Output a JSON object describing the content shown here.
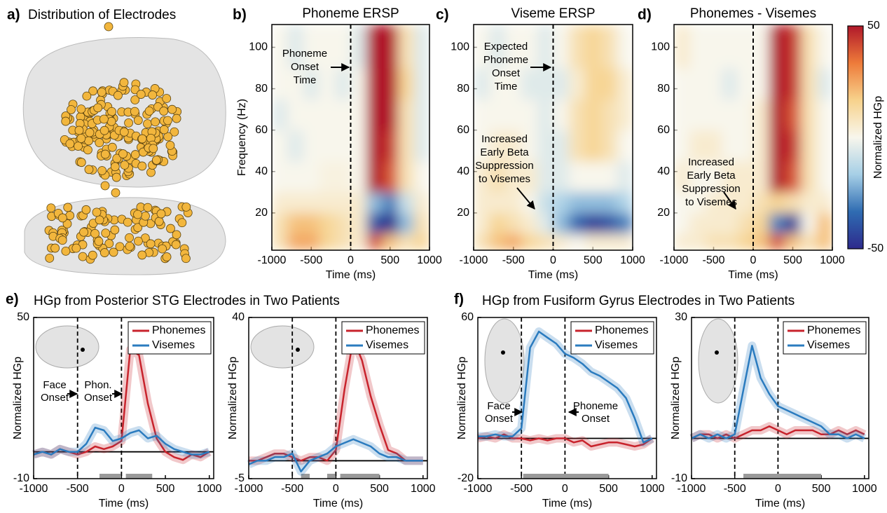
{
  "chart_data": [
    {
      "type": "image",
      "label": "a)",
      "title": "Distribution of Electrodes"
    },
    {
      "type": "heatmap",
      "label": "b)",
      "title": "Phoneme ERSP",
      "xlabel": "Time (ms)",
      "ylabel": "Frequency (Hz)",
      "xlim": [
        -1000,
        1000
      ],
      "ylim": [
        2,
        111
      ],
      "xticks": [
        -1000,
        -500,
        0,
        500,
        1000
      ],
      "yticks": [
        20,
        40,
        60,
        80,
        100
      ],
      "x_edges": [
        -1000,
        -800,
        -600,
        -400,
        -200,
        0,
        200,
        400,
        600,
        800,
        1000
      ],
      "y_edges": [
        2,
        10,
        20,
        30,
        45,
        60,
        75,
        90,
        111
      ],
      "clim": [
        -50,
        50
      ],
      "event_lines": [
        0
      ],
      "z": [
        [
          10,
          25,
          25,
          15,
          10,
          5,
          40,
          20,
          10,
          15
        ],
        [
          10,
          20,
          20,
          15,
          10,
          5,
          -40,
          -50,
          -20,
          10
        ],
        [
          5,
          5,
          5,
          5,
          5,
          5,
          -20,
          -30,
          -10,
          5
        ],
        [
          0,
          0,
          0,
          2,
          2,
          0,
          50,
          40,
          10,
          0
        ],
        [
          0,
          -5,
          0,
          0,
          0,
          0,
          50,
          45,
          10,
          -5
        ],
        [
          -5,
          0,
          0,
          0,
          0,
          0,
          50,
          50,
          10,
          -5
        ],
        [
          0,
          0,
          -5,
          0,
          -5,
          0,
          50,
          50,
          15,
          -5
        ],
        [
          0,
          -5,
          0,
          0,
          0,
          -5,
          50,
          50,
          10,
          -5
        ]
      ],
      "annotations": [
        [
          "Phoneme",
          "Onset",
          "Time"
        ]
      ]
    },
    {
      "type": "heatmap",
      "label": "c)",
      "title": "Viseme ERSP",
      "xlabel": "Time (ms)",
      "xlim": [
        -1000,
        1000
      ],
      "ylim": [
        2,
        111
      ],
      "xticks": [
        -1000,
        -500,
        0,
        500,
        1000
      ],
      "yticks": [
        20,
        40,
        60,
        80,
        100
      ],
      "x_edges": [
        -1000,
        -800,
        -600,
        -400,
        -200,
        0,
        200,
        400,
        600,
        800,
        1000
      ],
      "y_edges": [
        2,
        10,
        20,
        30,
        45,
        60,
        75,
        90,
        111
      ],
      "clim": [
        -50,
        50
      ],
      "event_lines": [
        0
      ],
      "z": [
        [
          10,
          20,
          25,
          15,
          10,
          5,
          0,
          5,
          5,
          5
        ],
        [
          5,
          15,
          10,
          5,
          -5,
          -20,
          -35,
          -45,
          -40,
          -30
        ],
        [
          5,
          5,
          5,
          0,
          -10,
          -15,
          -20,
          -20,
          -20,
          -15
        ],
        [
          5,
          10,
          5,
          5,
          -5,
          -5,
          0,
          0,
          0,
          -5
        ],
        [
          0,
          5,
          5,
          0,
          -5,
          -5,
          10,
          15,
          10,
          0
        ],
        [
          0,
          0,
          0,
          0,
          -5,
          0,
          10,
          15,
          10,
          5
        ],
        [
          -5,
          0,
          0,
          -5,
          -5,
          -5,
          5,
          15,
          15,
          5
        ],
        [
          0,
          -5,
          0,
          0,
          -5,
          0,
          10,
          15,
          10,
          0
        ]
      ],
      "annotations": [
        [
          "Expected",
          "Phoneme",
          "Onset",
          "Time"
        ],
        [
          "Increased",
          "Early Beta",
          "Suppression",
          "to Visemes"
        ]
      ]
    },
    {
      "type": "heatmap",
      "label": "d)",
      "title": "Phonemes - Visemes",
      "xlabel": "Time (ms)",
      "xlim": [
        -1000,
        1000
      ],
      "ylim": [
        2,
        111
      ],
      "xticks": [
        -1000,
        -500,
        0,
        500,
        1000
      ],
      "yticks": [
        20,
        40,
        60,
        80,
        100
      ],
      "x_edges": [
        -1000,
        -800,
        -600,
        -400,
        -200,
        0,
        200,
        400,
        600,
        800,
        1000
      ],
      "y_edges": [
        2,
        10,
        20,
        30,
        45,
        60,
        75,
        90,
        111
      ],
      "clim": [
        -50,
        50
      ],
      "event_lines": [
        0
      ],
      "z": [
        [
          5,
          5,
          10,
          10,
          15,
          20,
          40,
          20,
          10,
          20
        ],
        [
          0,
          5,
          5,
          5,
          10,
          15,
          -30,
          -45,
          0,
          20
        ],
        [
          0,
          0,
          5,
          5,
          5,
          10,
          15,
          10,
          5,
          5
        ],
        [
          5,
          0,
          0,
          5,
          5,
          5,
          50,
          40,
          10,
          0
        ],
        [
          0,
          5,
          5,
          0,
          0,
          5,
          50,
          45,
          10,
          0
        ],
        [
          0,
          0,
          0,
          0,
          0,
          5,
          50,
          40,
          10,
          0
        ],
        [
          0,
          0,
          0,
          -5,
          0,
          0,
          50,
          45,
          10,
          -5
        ],
        [
          5,
          0,
          0,
          0,
          0,
          0,
          50,
          45,
          10,
          0
        ]
      ],
      "annotations": [
        [
          "Increased",
          "Early Beta",
          "Suppression",
          "to Visemes"
        ]
      ],
      "colorbar": {
        "label": "Normalized HGp",
        "ticks": [
          -50,
          50
        ],
        "colormap": [
          "#2d2a8c",
          "#2f6cb2",
          "#a6cfe6",
          "#f8f6ec",
          "#f7d28c",
          "#ee7b3a",
          "#b0182a"
        ]
      }
    },
    {
      "type": "line",
      "label": "e)",
      "group_title": "HGp from Posterior STG Electrodes in Two Patients",
      "xlabel": "Time (ms)",
      "ylabel": "Normalized HGp",
      "xlim": [
        -1000,
        1050
      ],
      "ylim": [
        -10,
        50
      ],
      "xticks": [
        -1000,
        -500,
        0,
        500,
        1000
      ],
      "yticks": [
        -10,
        50
      ],
      "legend": "upper right",
      "reference_line": 0,
      "event_lines": [
        -500,
        0
      ],
      "significant_intervals": [
        [
          -250,
          -10
        ],
        [
          50,
          350
        ]
      ],
      "x": [
        -1000,
        -900,
        -800,
        -700,
        -600,
        -500,
        -400,
        -300,
        -200,
        -100,
        0,
        100,
        200,
        300,
        400,
        500,
        600,
        700,
        800,
        900,
        1000
      ],
      "series": [
        {
          "name": "Phonemes",
          "color": "#c8232c",
          "values": [
            -1,
            0,
            -1,
            1,
            0,
            -1,
            0,
            2,
            1,
            2,
            4,
            38,
            36,
            18,
            5,
            0,
            -2,
            -3,
            -1,
            -2,
            0
          ]
        },
        {
          "name": "Visemes",
          "color": "#2a7bbf",
          "values": [
            -1,
            0,
            -1,
            1,
            0,
            0,
            3,
            9,
            8,
            4,
            5,
            7,
            8,
            5,
            6,
            3,
            1,
            0,
            -1,
            -1,
            0
          ]
        }
      ],
      "annotations": [
        [
          "Face",
          "Onset"
        ],
        [
          "Phon.",
          "Onset"
        ]
      ]
    },
    {
      "type": "line",
      "xlabel": "Time (ms)",
      "ylabel": "Normalized HGp",
      "xlim": [
        -1000,
        1050
      ],
      "ylim": [
        -5,
        40
      ],
      "xticks": [
        -1000,
        -500,
        0,
        500,
        1000
      ],
      "yticks": [
        -5,
        40
      ],
      "legend": "upper right",
      "reference_line": 0,
      "event_lines": [
        -500,
        0
      ],
      "significant_intervals": [
        [
          -400,
          -300
        ],
        [
          -100,
          -10
        ],
        [
          50,
          500
        ]
      ],
      "x": [
        -1000,
        -900,
        -800,
        -700,
        -600,
        -500,
        -400,
        -300,
        -200,
        -100,
        0,
        100,
        200,
        300,
        400,
        500,
        600,
        700,
        800,
        900,
        1000
      ],
      "series": [
        {
          "name": "Phonemes",
          "color": "#c8232c",
          "values": [
            0,
            0,
            1,
            2,
            2,
            1,
            0,
            1,
            1,
            0,
            3,
            20,
            34,
            28,
            18,
            10,
            3,
            2,
            0,
            0,
            0
          ]
        },
        {
          "name": "Visemes",
          "color": "#2a7bbf",
          "values": [
            -1,
            0,
            0,
            1,
            1,
            2,
            -3,
            0,
            1,
            2,
            4,
            5,
            6,
            5,
            4,
            2,
            1,
            1,
            0,
            0,
            0
          ]
        }
      ]
    },
    {
      "type": "line",
      "label": "f)",
      "group_title": "HGp from Fusiform Gyrus Electrodes in Two Patients",
      "xlabel": "Time (ms)",
      "ylabel": "Normalized HGp",
      "xlim": [
        -1000,
        1050
      ],
      "ylim": [
        -20,
        60
      ],
      "xticks": [
        -1000,
        -500,
        0,
        500,
        1000
      ],
      "yticks": [
        -20,
        60
      ],
      "legend": "upper right",
      "reference_line": 0,
      "event_lines": [
        -500,
        0
      ],
      "significant_intervals": [
        [
          -480,
          500
        ]
      ],
      "x": [
        -1000,
        -900,
        -800,
        -700,
        -600,
        -500,
        -400,
        -300,
        -200,
        -100,
        0,
        100,
        200,
        300,
        400,
        500,
        600,
        700,
        800,
        900,
        1000
      ],
      "series": [
        {
          "name": "Phonemes",
          "color": "#c8232c",
          "values": [
            0,
            1,
            0,
            2,
            0,
            0,
            -1,
            0,
            -1,
            0,
            0,
            -2,
            -1,
            -4,
            -3,
            -2,
            -2,
            -3,
            -4,
            -3,
            0
          ]
        },
        {
          "name": "Visemes",
          "color": "#2a7bbf",
          "values": [
            1,
            1,
            2,
            1,
            1,
            5,
            45,
            53,
            50,
            47,
            42,
            40,
            37,
            33,
            31,
            28,
            25,
            20,
            10,
            -2,
            0
          ]
        }
      ],
      "annotations": [
        [
          "Face",
          "Onset"
        ],
        [
          "Phoneme",
          "Onset"
        ]
      ]
    },
    {
      "type": "line",
      "xlabel": "Time (ms)",
      "ylabel": "Normalized HGp",
      "xlim": [
        -1000,
        1050
      ],
      "ylim": [
        -10,
        30
      ],
      "xticks": [
        -1000,
        -500,
        0,
        500,
        1000
      ],
      "yticks": [
        -10,
        30
      ],
      "legend": "upper right",
      "reference_line": 0,
      "event_lines": [
        -500,
        0
      ],
      "significant_intervals": [
        [
          -400,
          500
        ]
      ],
      "x": [
        -1000,
        -900,
        -800,
        -700,
        -600,
        -500,
        -400,
        -300,
        -200,
        -100,
        0,
        100,
        200,
        300,
        400,
        500,
        600,
        700,
        800,
        900,
        1000
      ],
      "series": [
        {
          "name": "Phonemes",
          "color": "#c8232c",
          "values": [
            0,
            1,
            1,
            0,
            1,
            0,
            1,
            2,
            2,
            3,
            2,
            1,
            2,
            2,
            2,
            1,
            1,
            2,
            1,
            2,
            1
          ]
        },
        {
          "name": "Visemes",
          "color": "#2a7bbf",
          "values": [
            0,
            1,
            0,
            1,
            0,
            1,
            12,
            23,
            15,
            11,
            8,
            7,
            6,
            5,
            4,
            3,
            1,
            1,
            0,
            1,
            0
          ]
        }
      ]
    }
  ]
}
